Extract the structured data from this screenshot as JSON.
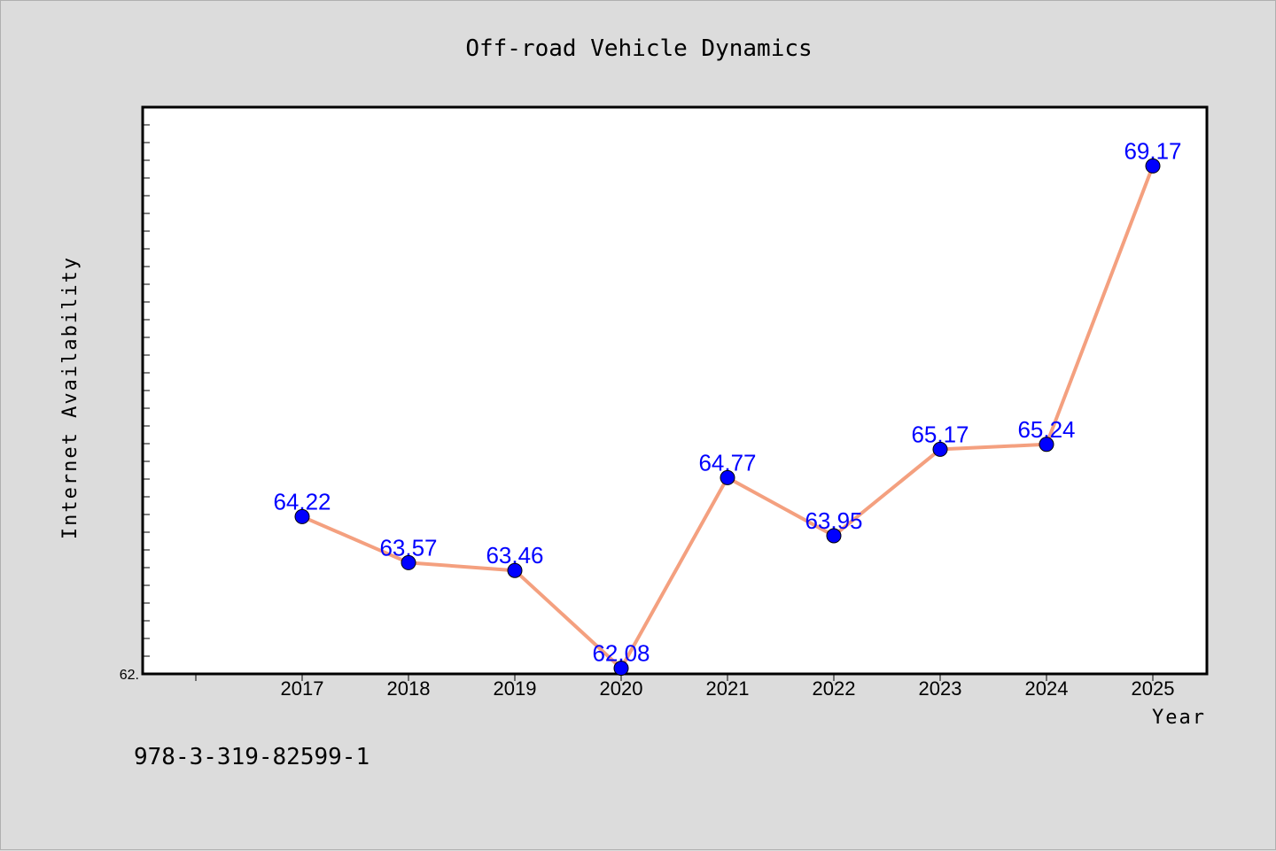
{
  "chart_data": {
    "type": "line",
    "title": "Off-road Vehicle Dynamics",
    "xlabel": "Year",
    "ylabel": "Internet Availability",
    "categories": [
      "2017",
      "2018",
      "2019",
      "2020",
      "2021",
      "2022",
      "2023",
      "2024",
      "2025"
    ],
    "series": [
      {
        "values": [
          64.22,
          63.57,
          63.46,
          62.08,
          64.77,
          63.95,
          65.17,
          65.24,
          69.17
        ]
      }
    ],
    "data_labels": [
      "64.22",
      "63.57",
      "63.46",
      "62.08",
      "64.77",
      "63.95",
      "65.17",
      "65.24",
      "69.17"
    ],
    "ylim": [
      62.0,
      70.0
    ],
    "ytick_label": "62.",
    "grid": false,
    "line_color": "#f4a07f",
    "marker_color": "#0000ff",
    "label_color": "#0000ff",
    "plot_background": "#ffffff",
    "figure_background": "#dcdcdc"
  },
  "footer_text": "978-3-319-82599-1"
}
